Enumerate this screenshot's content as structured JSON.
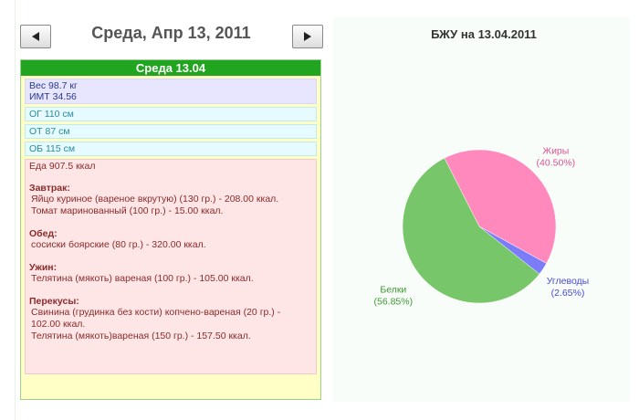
{
  "header": {
    "date": "Среда, Апр 13, 2011"
  },
  "day_panel": {
    "title": "Среда 13.04",
    "weight": "Вес 98.7 кг",
    "bmi": "ИМТ 34.56",
    "measurements": [
      "ОГ 110 см",
      "ОТ 87 см",
      "ОБ 115 см"
    ],
    "food_total": "Еда 907.5 ккал",
    "meals": [
      {
        "name": "Завтрак:",
        "items": [
          "Яйцо куриное (вареное вкрутую) (130 гр.) - 208.00 ккал.",
          "Томат маринованный (100 гр.) - 15.00 ккал."
        ]
      },
      {
        "name": "Обед:",
        "items": [
          "сосиски боярские (80 гр.) - 320.00 ккал."
        ]
      },
      {
        "name": "Ужин:",
        "items": [
          "Телятина (мякоть) вареная (100 гр.) - 105.00 ккал."
        ]
      },
      {
        "name": "Перекусы:",
        "items": [
          "Свинина (грудинка без кости) копчено-вареная (20 гр.) - 102.00 ккал.",
          "Телятина (мякоть)вареная (150 гр.) - 157.50 ккал."
        ]
      }
    ]
  },
  "chart_data": {
    "type": "pie",
    "title": "БЖУ на 13.04.2011",
    "categories": [
      "Жиры",
      "Углеводы",
      "Белки"
    ],
    "values": [
      40.5,
      2.65,
      56.85
    ],
    "value_labels": [
      "(40.50%)",
      "(2.65%)",
      "(56.85%)"
    ],
    "colors": [
      "#ff88bd",
      "#7b7cf7",
      "#78c66a"
    ],
    "label_colors": [
      "#d9548f",
      "#4a4ad8",
      "#3f9a33"
    ]
  }
}
